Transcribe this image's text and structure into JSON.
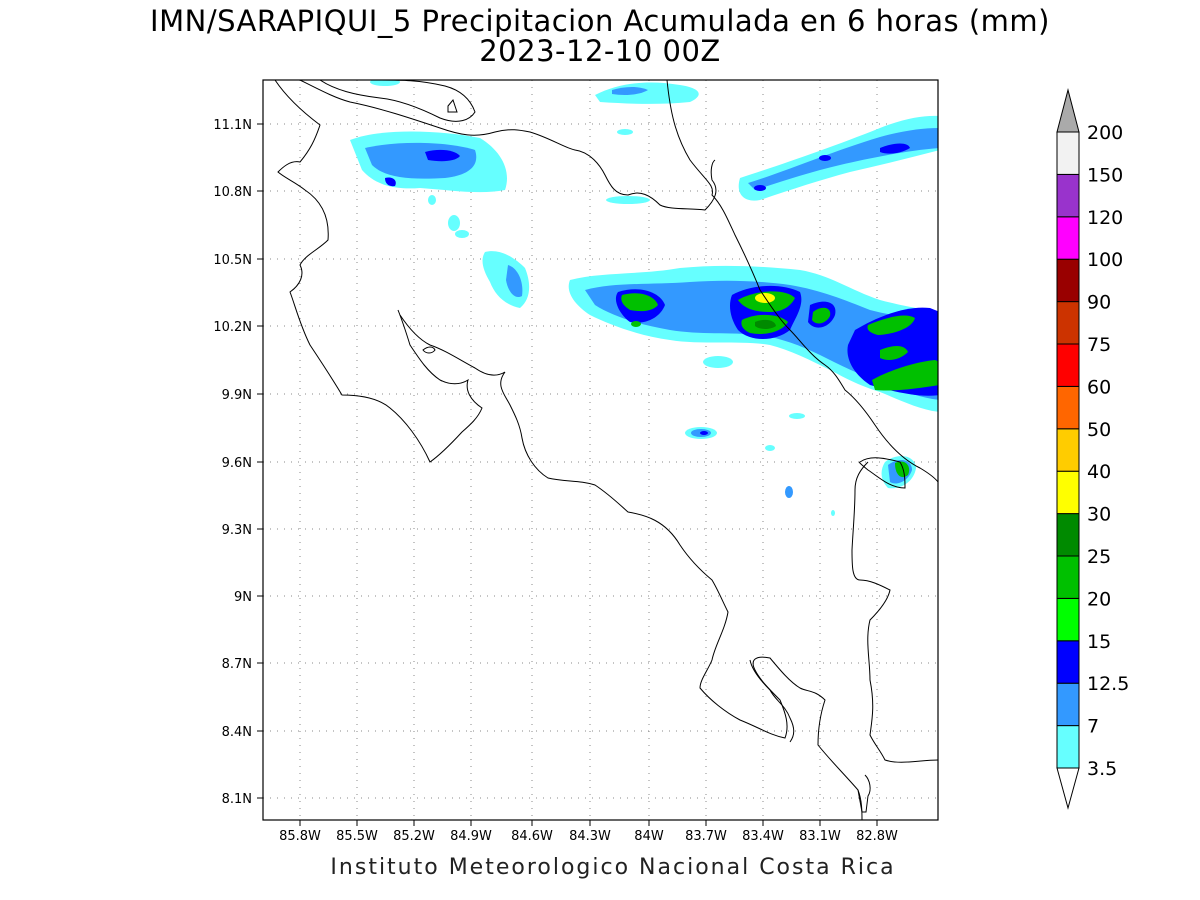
{
  "title": {
    "line1": "IMN/SARAPIQUI_5 Precipitacion Acumulada en 6 horas (mm)",
    "line2": "2023-12-10 00Z"
  },
  "footer": "Instituto Meteorologico Nacional Costa Rica",
  "map": {
    "lon_ticks": [
      "85.8W",
      "85.5W",
      "85.2W",
      "84.9W",
      "84.6W",
      "84.3W",
      "84W",
      "83.7W",
      "83.4W",
      "83.1W",
      "82.8W"
    ],
    "lat_ticks": [
      "11.1N",
      "10.8N",
      "10.5N",
      "10.2N",
      "9.9N",
      "9.6N",
      "9.3N",
      "9N",
      "8.7N",
      "8.4N",
      "8.1N"
    ]
  },
  "colorbar": {
    "labels": [
      "3.5",
      "7",
      "12.5",
      "15",
      "20",
      "25",
      "30",
      "40",
      "50",
      "60",
      "75",
      "90",
      "100",
      "120",
      "150",
      "200"
    ],
    "colors": [
      "#ffffff",
      "#66ffff",
      "#3399ff",
      "#0000ff",
      "#00ff00",
      "#00c000",
      "#008a00",
      "#ffff00",
      "#ffcc00",
      "#ff6600",
      "#ff0000",
      "#cc3300",
      "#990000",
      "#ff00ff",
      "#9933cc",
      "#f2f2f2"
    ],
    "top_arrow_color": "#aaaaaa"
  }
}
